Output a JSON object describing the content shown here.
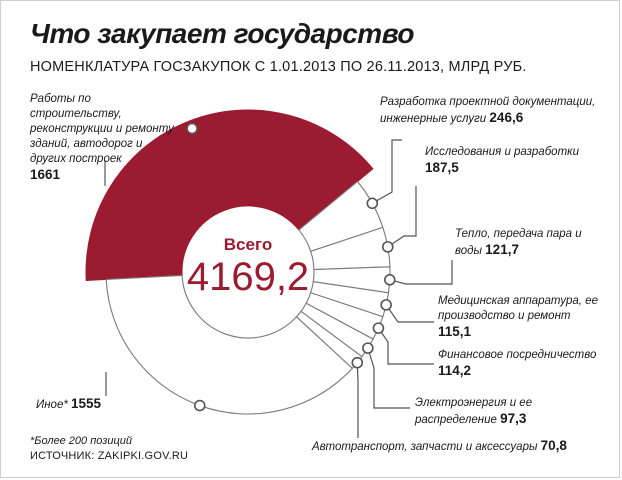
{
  "title": "Что закупает государство",
  "subtitle": "НОМЕНКЛАТУРА ГОСЗАКУПОК С 1.01.2013 ПО 26.11.2013, МЛРД РУБ.",
  "center": {
    "label": "Всего",
    "value": "4169,2"
  },
  "footnote": "*Более 200 позиций",
  "source": "ИСТОЧНИК: ZAKIPKI.GOV.RU",
  "colors": {
    "highlight": "#9b1b30",
    "ring": "#ffffff",
    "outline": "#7a7a7a",
    "line": "#555555"
  },
  "chart_data": {
    "type": "pie",
    "unit": "млрд руб.",
    "total": 4169.2,
    "slices": [
      {
        "label": "Работы по строительству, реконструкции и ремонту зданий, автодорог и других построек",
        "value": 1661,
        "value_text": "1661",
        "highlight": true
      },
      {
        "label": "Разработка проектной документации, инженерные услуги",
        "value": 246.6,
        "value_text": "246,6"
      },
      {
        "label": "Исследования и разработки",
        "value": 187.5,
        "value_text": "187,5"
      },
      {
        "label": "Тепло, передача пара и воды",
        "value": 121.7,
        "value_text": "121,7"
      },
      {
        "label": "Медицинская аппаратура, ее производство и ремонт",
        "value": 115.1,
        "value_text": "115,1"
      },
      {
        "label": "Финансовое посредничество",
        "value": 114.2,
        "value_text": "114,2"
      },
      {
        "label": "Электроэнергия и ее распределение",
        "value": 97.3,
        "value_text": "97,3"
      },
      {
        "label": "Автотранспорт, запчасти и аксессуары",
        "value": 70.8,
        "value_text": "70,8"
      },
      {
        "label": "Иное*",
        "value": 1555,
        "value_text": "1555"
      }
    ]
  }
}
